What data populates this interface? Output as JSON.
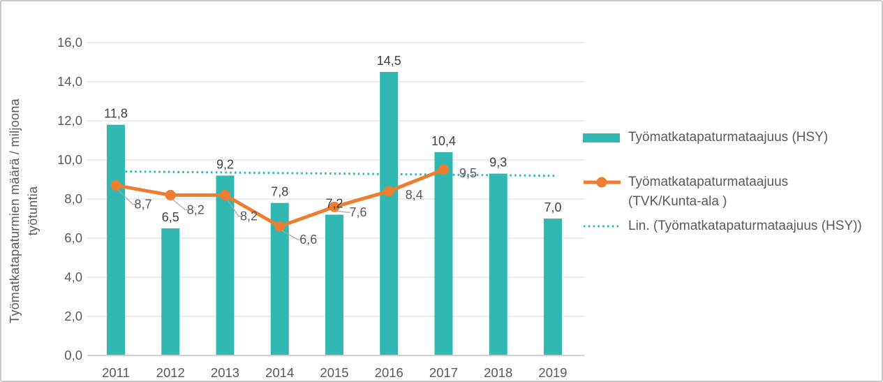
{
  "colors": {
    "bar_teal": "#32b8b2",
    "line_orange": "#ed7d31",
    "trendline_teal": "#32b8b2",
    "gridline": "#d9d9d9",
    "axis_line": "#d0d0d0",
    "tick_text": "#595959",
    "bar_label_text": "#404040",
    "line_label_text": "#595959",
    "leader_line": "#a6a6a6",
    "frame_border": "#c9c9c9"
  },
  "legend": {
    "items": [
      {
        "label": "Työmatkatapaturmataajuus (HSY)"
      },
      {
        "label_line1": "Työmatkatapaturmataajuus",
        "label_line2": "(TVK/Kunta-ala )"
      },
      {
        "label": "Lin. (Työmatkatapaturmataajuus (HSY))"
      }
    ]
  },
  "chart_data": {
    "type": "bar",
    "subtype": "bar+line+trendline combo",
    "categories": [
      "2011",
      "2012",
      "2013",
      "2014",
      "2015",
      "2016",
      "2017",
      "2018",
      "2019"
    ],
    "series": [
      {
        "name": "Työmatkatapaturmataajuus (HSY)",
        "type": "bar",
        "values": [
          11.8,
          6.5,
          9.2,
          7.8,
          7.2,
          14.5,
          10.4,
          9.3,
          7.0
        ],
        "labels": [
          "11,8",
          "6,5",
          "9,2",
          "7,8",
          "7,2",
          "14,5",
          "10,4",
          "9,3",
          "7,0"
        ]
      },
      {
        "name": "Työmatkatapaturmataajuus (TVK/Kunta-ala )",
        "type": "line",
        "values": [
          8.7,
          8.2,
          8.2,
          6.6,
          7.6,
          8.4,
          9.5
        ],
        "labels": [
          "8,7",
          "8,2",
          "8,2",
          "6,6",
          "7,6",
          "8,4",
          "9,5"
        ]
      },
      {
        "name": "Lin. (Työmatkatapaturmataajuus (HSY))",
        "type": "linear-trendline",
        "basis_series": "Työmatkatapaturmataajuus (HSY)"
      }
    ],
    "y_axis": {
      "title_line1": "Työmatkatapaturmien määrä / miljoona",
      "title_line2": "työtuntia",
      "ticks": [
        "0,0",
        "2,0",
        "4,0",
        "6,0",
        "8,0",
        "10,0",
        "12,0",
        "14,0",
        "16,0"
      ],
      "min": 0,
      "max": 16,
      "step": 2
    },
    "xlabel": "",
    "ylabel": "Työmatkatapaturmien määrä / miljoona työtuntia",
    "ylim": [
      0,
      16
    ],
    "grid": "horizontal",
    "legend_position": "right"
  }
}
